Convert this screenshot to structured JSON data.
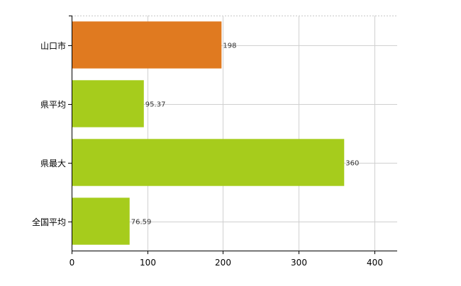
{
  "chart_data": {
    "type": "bar",
    "orientation": "horizontal",
    "title": "",
    "xlabel": "",
    "ylabel": "",
    "categories": [
      "山口市",
      "県平均",
      "県最大",
      "全国平均"
    ],
    "values": [
      198,
      95.37,
      360,
      76.59
    ],
    "value_labels": [
      "198",
      "95.37",
      "360",
      "76.59"
    ],
    "bar_colors": [
      "#e07a20",
      "#a6cc1c",
      "#a6cc1c",
      "#a6cc1c"
    ],
    "xlim": [
      0,
      430
    ],
    "xticks": [
      0,
      100,
      200,
      300,
      400
    ],
    "xtick_labels": [
      "0",
      "100",
      "200",
      "300",
      "400"
    ],
    "grid": true,
    "legend": "none"
  }
}
